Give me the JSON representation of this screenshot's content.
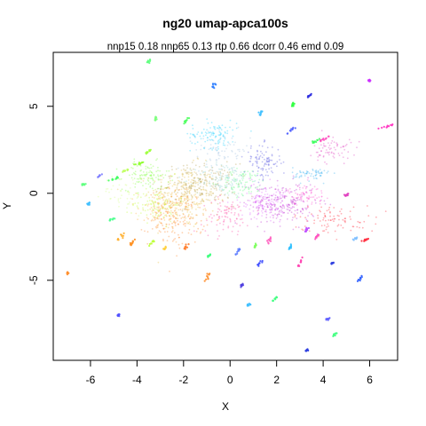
{
  "chart_data": {
    "type": "scatter",
    "title": "ng20 umap-apca100s",
    "subtitle": "nnp15 0.18 nnp65 0.13 rtp 0.66 dcorr 0.46 emd 0.09",
    "xlabel": "X",
    "ylabel": "Y",
    "xlim": [
      -7.6,
      7.2
    ],
    "ylim": [
      -9.6,
      8.1
    ],
    "xticks": [
      -6,
      -4,
      -2,
      0,
      2,
      4,
      6
    ],
    "yticks": [
      -5,
      0,
      5
    ],
    "grid": false,
    "legend": "none",
    "clusters": [
      {
        "x": -2.0,
        "y": -0.2,
        "sx": 0.7,
        "sy": 0.9,
        "n": 260,
        "color": "#e8c040"
      },
      {
        "x": -1.3,
        "y": 0.5,
        "sx": 0.8,
        "sy": 0.6,
        "n": 220,
        "color": "#b8a050"
      },
      {
        "x": -2.3,
        "y": -1.4,
        "sx": 0.6,
        "sy": 0.8,
        "n": 160,
        "color": "#ff8020"
      },
      {
        "x": -3.0,
        "y": -1.0,
        "sx": 0.5,
        "sy": 0.6,
        "n": 90,
        "color": "#ffb040"
      },
      {
        "x": -3.6,
        "y": 1.0,
        "sx": 0.5,
        "sy": 0.4,
        "n": 110,
        "color": "#80ff40"
      },
      {
        "x": -3.2,
        "y": -0.6,
        "sx": 0.5,
        "sy": 0.5,
        "n": 90,
        "color": "#c0ff30"
      },
      {
        "x": -0.3,
        "y": 0.8,
        "sx": 0.6,
        "sy": 0.5,
        "n": 120,
        "color": "#90d0d0"
      },
      {
        "x": 0.6,
        "y": 0.6,
        "sx": 0.5,
        "sy": 0.4,
        "n": 90,
        "color": "#60ff80"
      },
      {
        "x": -0.7,
        "y": 3.4,
        "sx": 0.5,
        "sy": 0.4,
        "n": 110,
        "color": "#20d0ff"
      },
      {
        "x": -0.3,
        "y": 2.5,
        "sx": 0.6,
        "sy": 0.5,
        "n": 70,
        "color": "#a0c0e0"
      },
      {
        "x": 1.4,
        "y": 1.8,
        "sx": 0.4,
        "sy": 0.5,
        "n": 100,
        "color": "#5050e0"
      },
      {
        "x": 2.3,
        "y": -0.6,
        "sx": 0.7,
        "sy": 0.6,
        "n": 230,
        "color": "#c030d0"
      },
      {
        "x": 1.4,
        "y": -0.4,
        "sx": 0.5,
        "sy": 0.5,
        "n": 130,
        "color": "#e060ff"
      },
      {
        "x": 3.3,
        "y": -0.1,
        "sx": 0.4,
        "sy": 0.3,
        "n": 70,
        "color": "#ff50d0"
      },
      {
        "x": 3.5,
        "y": 1.1,
        "sx": 0.4,
        "sy": 0.2,
        "n": 60,
        "color": "#30b0f0"
      },
      {
        "x": 4.4,
        "y": 2.5,
        "sx": 0.4,
        "sy": 0.4,
        "n": 70,
        "color": "#e040c0"
      },
      {
        "x": 4.5,
        "y": -1.5,
        "sx": 0.9,
        "sy": 0.4,
        "n": 90,
        "color": "#ff2030"
      },
      {
        "x": -0.2,
        "y": -1.3,
        "sx": 0.5,
        "sy": 0.5,
        "n": 90,
        "color": "#ff40a0"
      },
      {
        "x": -4.5,
        "y": 0.0,
        "sx": 0.5,
        "sy": 0.5,
        "n": 40,
        "color": "#d0ff80"
      }
    ],
    "sprigs": [
      {
        "x": 6.6,
        "y": 3.8,
        "dx": 0.4,
        "dy": 0.15,
        "color": "#ff30c0"
      },
      {
        "x": 6.0,
        "y": 6.5,
        "dx": 0.05,
        "dy": 0.05,
        "color": "#cc30ff"
      },
      {
        "x": 3.4,
        "y": 5.6,
        "dx": 0.05,
        "dy": 0.1,
        "color": "#3030e0"
      },
      {
        "x": 2.6,
        "y": 3.6,
        "dx": 0.15,
        "dy": 0.2,
        "color": "#5060ff"
      },
      {
        "x": 1.3,
        "y": 4.6,
        "dx": 0.05,
        "dy": 0.1,
        "color": "#40c0ff"
      },
      {
        "x": 2.7,
        "y": 5.1,
        "dx": 0.05,
        "dy": 0.1,
        "color": "#30ff40"
      },
      {
        "x": 4.0,
        "y": 3.1,
        "dx": 0.25,
        "dy": 0.15,
        "color": "#ff50c0"
      },
      {
        "x": 3.7,
        "y": 3.0,
        "dx": 0.15,
        "dy": 0.1,
        "color": "#40ff60"
      },
      {
        "x": -0.7,
        "y": 6.2,
        "dx": 0.05,
        "dy": 0.15,
        "color": "#3080ff"
      },
      {
        "x": -1.9,
        "y": 4.2,
        "dx": 0.1,
        "dy": 0.2,
        "color": "#50ff60"
      },
      {
        "x": -3.5,
        "y": 7.6,
        "dx": 0.05,
        "dy": 0.05,
        "color": "#60ff80"
      },
      {
        "x": -3.2,
        "y": 4.3,
        "dx": 0.05,
        "dy": 0.1,
        "color": "#80ff80"
      },
      {
        "x": -3.5,
        "y": 2.4,
        "dx": 0.1,
        "dy": 0.1,
        "color": "#a0ff40"
      },
      {
        "x": -3.9,
        "y": 1.7,
        "dx": 0.2,
        "dy": 0.1,
        "color": "#90ff30"
      },
      {
        "x": -4.5,
        "y": 1.3,
        "dx": 0.15,
        "dy": 0.1,
        "color": "#c0ff60"
      },
      {
        "x": -5.0,
        "y": 0.8,
        "dx": 0.2,
        "dy": 0.1,
        "color": "#40ff60"
      },
      {
        "x": -5.6,
        "y": 1.0,
        "dx": 0.1,
        "dy": 0.05,
        "color": "#8080ff"
      },
      {
        "x": -6.3,
        "y": 0.5,
        "dx": 0.05,
        "dy": 0.05,
        "color": "#60ff80"
      },
      {
        "x": -6.1,
        "y": -0.6,
        "dx": 0.05,
        "dy": 0.05,
        "color": "#40c0ff"
      },
      {
        "x": -5.1,
        "y": -1.5,
        "dx": 0.2,
        "dy": 0.1,
        "color": "#50ff90"
      },
      {
        "x": -4.7,
        "y": -2.5,
        "dx": 0.15,
        "dy": 0.2,
        "color": "#ffb030"
      },
      {
        "x": -4.2,
        "y": -2.8,
        "dx": 0.1,
        "dy": 0.15,
        "color": "#ff9020"
      },
      {
        "x": -3.4,
        "y": -2.9,
        "dx": 0.1,
        "dy": 0.15,
        "color": "#c0ff40"
      },
      {
        "x": -2.8,
        "y": -3.2,
        "dx": 0.05,
        "dy": 0.1,
        "color": "#ffd040"
      },
      {
        "x": -1.9,
        "y": -3.1,
        "dx": 0.1,
        "dy": 0.2,
        "color": "#ff8030"
      },
      {
        "x": -7.0,
        "y": -4.6,
        "dx": 0.05,
        "dy": 0.05,
        "color": "#ff9030"
      },
      {
        "x": -4.8,
        "y": -7.0,
        "dx": 0.05,
        "dy": 0.05,
        "color": "#5050ff"
      },
      {
        "x": -1.0,
        "y": -4.9,
        "dx": 0.1,
        "dy": 0.3,
        "color": "#ff9030"
      },
      {
        "x": -0.9,
        "y": -3.6,
        "dx": 0.05,
        "dy": 0.1,
        "color": "#40ff80"
      },
      {
        "x": 0.3,
        "y": -3.4,
        "dx": 0.1,
        "dy": 0.2,
        "color": "#6080ff"
      },
      {
        "x": 0.5,
        "y": -5.3,
        "dx": 0.05,
        "dy": 0.1,
        "color": "#5040e0"
      },
      {
        "x": 0.8,
        "y": -6.4,
        "dx": 0.05,
        "dy": 0.05,
        "color": "#40c0ff"
      },
      {
        "x": 1.1,
        "y": -3.0,
        "dx": 0.05,
        "dy": 0.15,
        "color": "#80ff60"
      },
      {
        "x": 1.3,
        "y": -4.0,
        "dx": 0.1,
        "dy": 0.15,
        "color": "#4050ff"
      },
      {
        "x": 1.7,
        "y": -2.7,
        "dx": 0.05,
        "dy": 0.15,
        "color": "#ff60c0"
      },
      {
        "x": 1.9,
        "y": -6.1,
        "dx": 0.1,
        "dy": 0.15,
        "color": "#40ff80"
      },
      {
        "x": 2.6,
        "y": -3.1,
        "dx": 0.05,
        "dy": 0.15,
        "color": "#30c0ff"
      },
      {
        "x": 3.0,
        "y": -4.0,
        "dx": 0.1,
        "dy": 0.3,
        "color": "#ff40b0"
      },
      {
        "x": 3.7,
        "y": -2.5,
        "dx": 0.1,
        "dy": 0.15,
        "color": "#ff50c0"
      },
      {
        "x": 3.3,
        "y": -2.1,
        "dx": 0.05,
        "dy": 0.1,
        "color": "#c050ff"
      },
      {
        "x": 4.4,
        "y": -4.0,
        "dx": 0.05,
        "dy": 0.05,
        "color": "#3040e0"
      },
      {
        "x": 5.6,
        "y": -4.9,
        "dx": 0.1,
        "dy": 0.15,
        "color": "#3060ff"
      },
      {
        "x": 5.8,
        "y": -2.7,
        "dx": 0.15,
        "dy": 0.1,
        "color": "#ff3040"
      },
      {
        "x": 5.0,
        "y": -0.1,
        "dx": 0.1,
        "dy": 0.05,
        "color": "#e040c0"
      },
      {
        "x": 4.2,
        "y": -7.2,
        "dx": 0.05,
        "dy": 0.05,
        "color": "#6060ff"
      },
      {
        "x": 4.5,
        "y": -8.1,
        "dx": 0.05,
        "dy": 0.05,
        "color": "#40ff80"
      },
      {
        "x": 3.3,
        "y": -9.0,
        "dx": 0.05,
        "dy": 0.05,
        "color": "#3040e0"
      },
      {
        "x": 5.4,
        "y": -2.6,
        "dx": 0.05,
        "dy": 0.05,
        "color": "#80c0ff"
      }
    ]
  }
}
